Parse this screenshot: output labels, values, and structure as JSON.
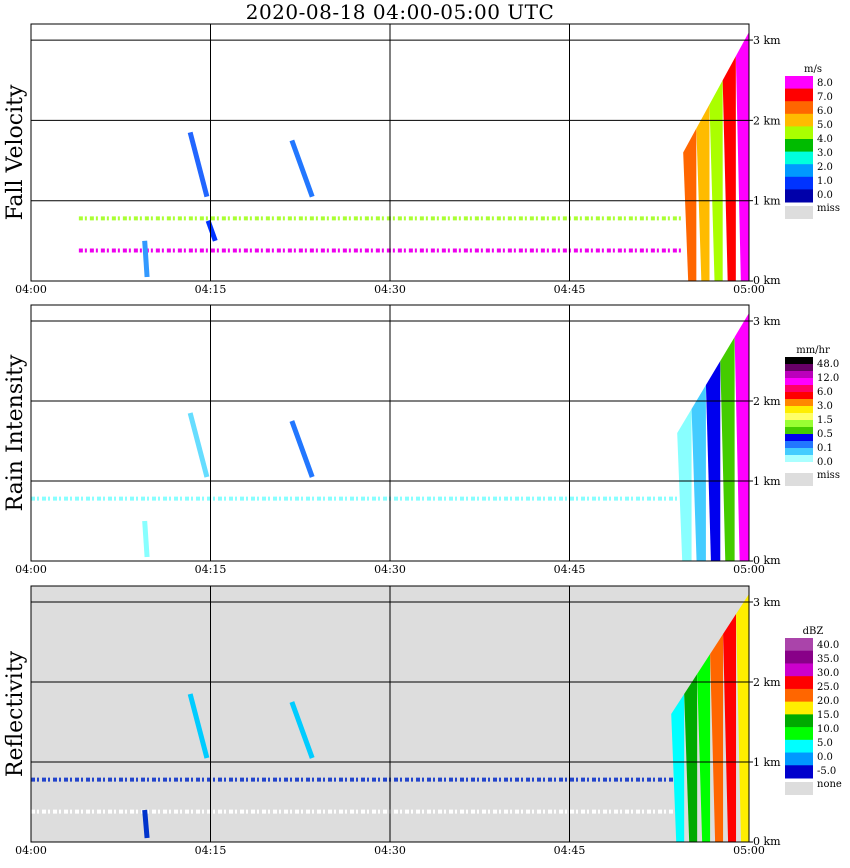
{
  "title": "2020-08-18   04:00-05:00 UTC",
  "x_ticks": [
    "04:00",
    "04:15",
    "04:30",
    "04:45",
    "05:00"
  ],
  "height_ticks": [
    "0 km",
    "1 km",
    "2 km",
    "3 km"
  ],
  "chart_data": [
    {
      "type": "heatmap",
      "panel_id": "fall_velocity",
      "ylabel": "Fall Velocity",
      "xlim": [
        "04:00",
        "05:00"
      ],
      "ylim_km": [
        0,
        3.2
      ],
      "background": "#ffffff",
      "colorbar": {
        "unit": "m/s",
        "labels": [
          "8.0",
          "7.0",
          "6.0",
          "5.0",
          "4.0",
          "3.0",
          "2.0",
          "1.0",
          "0.0"
        ],
        "colors": [
          "#ff00ff",
          "#ff0000",
          "#ff6600",
          "#ffbb00",
          "#aaff00",
          "#00bb00",
          "#00ffdd",
          "#0099ff",
          "#0033ff",
          "#0000aa"
        ],
        "missing_label": "miss",
        "missing_color": "#dddddd"
      },
      "features": [
        {
          "kind": "horizontal_band",
          "t_start": 4.0,
          "t_end": 54.5,
          "height_km": 0.78,
          "color": "#aaff33",
          "dashed": true
        },
        {
          "kind": "horizontal_band",
          "t_start": 4.0,
          "t_end": 54.5,
          "height_km": 0.38,
          "color": "#ee00ee",
          "dashed": true
        },
        {
          "kind": "streak",
          "t0": 13.3,
          "h0": 1.85,
          "t1": 14.7,
          "h1": 1.05,
          "color": "#2266ff"
        },
        {
          "kind": "streak",
          "t0": 14.8,
          "h0": 0.75,
          "t1": 15.4,
          "h1": 0.5,
          "color": "#0033ff"
        },
        {
          "kind": "streak",
          "t0": 9.5,
          "h0": 0.5,
          "t1": 9.7,
          "h1": 0.05,
          "color": "#3399ff"
        },
        {
          "kind": "streak",
          "t0": 21.8,
          "h0": 1.75,
          "t1": 23.5,
          "h1": 1.05,
          "color": "#2277ff"
        },
        {
          "kind": "rain_shaft",
          "t_start": 54.5,
          "t_end": 60.0,
          "top_km": 3.1,
          "colors": [
            "#ff6600",
            "#ffbb00",
            "#aaff00",
            "#ff0000",
            "#ff00ff"
          ]
        }
      ]
    },
    {
      "type": "heatmap",
      "panel_id": "rain_intensity",
      "ylabel": "Rain Intensity",
      "xlim": [
        "04:00",
        "05:00"
      ],
      "ylim_km": [
        0,
        3.2
      ],
      "background": "#ffffff",
      "colorbar": {
        "unit": "mm/hr",
        "labels": [
          "48.0",
          "12.0",
          "6.0",
          "3.0",
          "1.5",
          "0.5",
          "0.1",
          "0.0"
        ],
        "colors": [
          "#000000",
          "#660066",
          "#bb00bb",
          "#ff00ff",
          "#ff0066",
          "#ff0000",
          "#ff8800",
          "#ffee00",
          "#ffff66",
          "#99ff33",
          "#44cc00",
          "#0000ee",
          "#2277ff",
          "#44ccff",
          "#aaffff",
          "#ffffff"
        ],
        "missing_label": "miss",
        "missing_color": "#dddddd"
      },
      "features": [
        {
          "kind": "horizontal_band",
          "t_start": 0.0,
          "t_end": 54.5,
          "height_km": 0.78,
          "color": "#88ffff",
          "dashed": true
        },
        {
          "kind": "streak",
          "t0": 13.3,
          "h0": 1.85,
          "t1": 14.7,
          "h1": 1.05,
          "color": "#66ddff"
        },
        {
          "kind": "streak",
          "t0": 9.5,
          "h0": 0.5,
          "t1": 9.7,
          "h1": 0.05,
          "color": "#88ffff"
        },
        {
          "kind": "streak",
          "t0": 21.8,
          "h0": 1.75,
          "t1": 23.5,
          "h1": 1.05,
          "color": "#2277ff"
        },
        {
          "kind": "rain_shaft",
          "t_start": 54.0,
          "t_end": 60.0,
          "top_km": 3.1,
          "colors": [
            "#88ffff",
            "#44ccff",
            "#0000ee",
            "#44cc00",
            "#ff00ff"
          ]
        }
      ]
    },
    {
      "type": "heatmap",
      "panel_id": "reflectivity",
      "ylabel": "Reflectivity",
      "xlim": [
        "04:00",
        "05:00"
      ],
      "ylim_km": [
        0,
        3.2
      ],
      "background": "#dddddd",
      "colorbar": {
        "unit": "dBZ",
        "labels": [
          "40.0",
          "35.0",
          "30.0",
          "25.0",
          "20.0",
          "15.0",
          "10.0",
          "5.0",
          "0.0",
          "-5.0"
        ],
        "colors": [
          "#aa44aa",
          "#880088",
          "#cc00cc",
          "#ff0000",
          "#ff6600",
          "#ffee00",
          "#00aa00",
          "#00ff00",
          "#00ffff",
          "#0099ff",
          "#0000cc"
        ],
        "missing_label": "none",
        "missing_color": "#dddddd"
      },
      "features": [
        {
          "kind": "horizontal_band",
          "t_start": 0.0,
          "t_end": 54.0,
          "height_km": 0.78,
          "color": "#2244cc",
          "dashed": true
        },
        {
          "kind": "horizontal_band",
          "t_start": 0.0,
          "t_end": 54.0,
          "height_km": 0.38,
          "color": "#ffffff",
          "dashed": true
        },
        {
          "kind": "streak",
          "t0": 13.3,
          "h0": 1.85,
          "t1": 14.7,
          "h1": 1.05,
          "color": "#00ccff"
        },
        {
          "kind": "streak",
          "t0": 9.5,
          "h0": 0.4,
          "t1": 9.7,
          "h1": 0.05,
          "color": "#0033cc"
        },
        {
          "kind": "streak",
          "t0": 21.8,
          "h0": 1.75,
          "t1": 23.5,
          "h1": 1.05,
          "color": "#00ccff"
        },
        {
          "kind": "rain_shaft",
          "t_start": 53.5,
          "t_end": 60.0,
          "top_km": 3.1,
          "colors": [
            "#00ffff",
            "#00aa00",
            "#00ff00",
            "#ff6600",
            "#ff0000",
            "#ffee00"
          ]
        }
      ]
    }
  ]
}
